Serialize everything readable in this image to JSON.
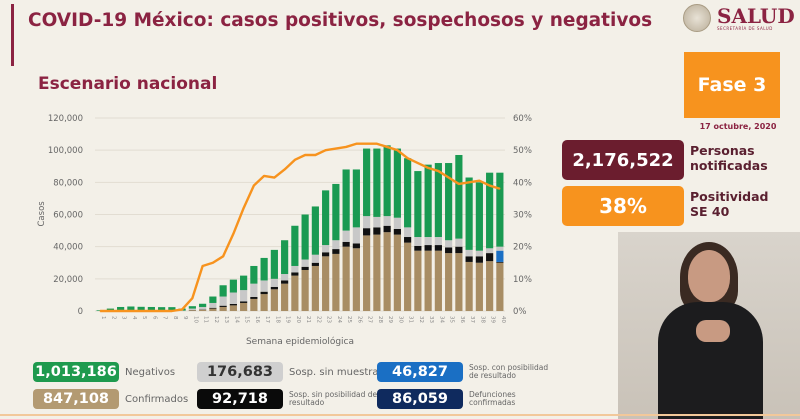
{
  "header": {
    "title": "COVID-19 México: casos positivos, sospechosos y negativos",
    "subtitle": "Escenario nacional",
    "logo_text": "SALUD",
    "logo_sub": "SECRETARÍA DE SALUD"
  },
  "panel": {
    "phase": "Fase 3",
    "date": "17 octubre, 2020",
    "notified_value": "2,176,522",
    "notified_label_1": "Personas",
    "notified_label_2": "notificadas",
    "positivity_value": "38%",
    "positivity_label_1": "Positividad",
    "positivity_label_2": "SE 40"
  },
  "legend": [
    {
      "value": "1,013,186",
      "label": "Negativos",
      "color": "#1e9a4e",
      "text_color": "#ffffff"
    },
    {
      "value": "176,683",
      "label": "Sosp. sin muestra",
      "color": "#cfcfcf",
      "text_color": "#333333"
    },
    {
      "value": "46,827",
      "label": "Sosp. con posibilidad de resultado",
      "color": "#1a6fc4",
      "text_color": "#ffffff"
    },
    {
      "value": "847,108",
      "label": "Confirmados",
      "color": "#b39a72",
      "text_color": "#ffffff"
    },
    {
      "value": "92,718",
      "label": "Sosp. sin posibilidad de resultado",
      "color": "#0a0a0a",
      "text_color": "#ffffff"
    },
    {
      "value": "86,059",
      "label": "Defunciones confirmadas",
      "color": "#0f2a5e",
      "text_color": "#ffffff"
    }
  ],
  "colors": {
    "confirmados": "#a88d64",
    "sin_posibilidad": "#111111",
    "con_posibilidad": "#1a6fc4",
    "sin_muestra": "#c8c8c8",
    "negativos": "#1a9a52",
    "positividad": "#f7931e"
  },
  "chart_data": {
    "type": "bar",
    "stacked": true,
    "xlabel": "Semana epidemiológica",
    "ylabel": "Casos",
    "ylim": [
      0,
      120000
    ],
    "y_ticks": [
      "0",
      "20,000",
      "40,000",
      "60,000",
      "80,000",
      "100,000",
      "120,000"
    ],
    "y2lim": [
      0,
      60
    ],
    "y2_ticks": [
      "0%",
      "10%",
      "20%",
      "30%",
      "40%",
      "50%",
      "60%"
    ],
    "categories": [
      "1",
      "2",
      "3",
      "4",
      "5",
      "6",
      "7",
      "8",
      "9",
      "10",
      "11",
      "12",
      "13",
      "14",
      "15",
      "16",
      "17",
      "18",
      "19",
      "20",
      "21",
      "22",
      "23",
      "24",
      "25",
      "26",
      "27",
      "28",
      "29",
      "30",
      "31",
      "32",
      "33",
      "34",
      "35",
      "36",
      "37",
      "38",
      "39",
      "40"
    ],
    "series": [
      {
        "name": "Confirmados",
        "key": "confirmados",
        "values": [
          0,
          0,
          0,
          0,
          0,
          0,
          0,
          0,
          50,
          500,
          800,
          1500,
          2500,
          3500,
          5000,
          7500,
          10500,
          13500,
          17000,
          22000,
          25500,
          28000,
          34000,
          35500,
          40000,
          39000,
          47000,
          47500,
          49000,
          47500,
          42500,
          37500,
          37500,
          37500,
          36000,
          36000,
          30500,
          30000,
          31000,
          30000
        ]
      },
      {
        "name": "Sosp. sin posibilidad de resultado",
        "key": "sin_posibilidad",
        "values": [
          0,
          0,
          0,
          0,
          0,
          0,
          0,
          0,
          0,
          100,
          200,
          500,
          800,
          900,
          1000,
          1200,
          1500,
          1500,
          2000,
          2000,
          2000,
          2000,
          2500,
          3000,
          3000,
          3000,
          4500,
          4500,
          4000,
          3500,
          3500,
          3000,
          3500,
          3500,
          3500,
          4000,
          3500,
          4000,
          5000,
          500
        ]
      },
      {
        "name": "Sosp. con posibilidad de resultado",
        "key": "con_posibilidad",
        "values": [
          0,
          0,
          0,
          0,
          0,
          0,
          0,
          0,
          0,
          0,
          0,
          0,
          0,
          0,
          0,
          0,
          0,
          0,
          0,
          0,
          0,
          0,
          0,
          0,
          0,
          0,
          0,
          0,
          0,
          0,
          0,
          0,
          0,
          0,
          0,
          0,
          0,
          0,
          0,
          7000
        ]
      },
      {
        "name": "Sosp. sin muestra",
        "key": "sin_muestra",
        "values": [
          100,
          200,
          300,
          300,
          300,
          300,
          300,
          300,
          200,
          900,
          1500,
          3000,
          5700,
          7100,
          7000,
          8300,
          7000,
          5000,
          4000,
          4000,
          4500,
          5000,
          4500,
          5500,
          7000,
          10000,
          7500,
          6500,
          6000,
          7000,
          6000,
          5500,
          5000,
          5000,
          4500,
          5000,
          4000,
          3500,
          3000,
          2500
        ]
      },
      {
        "name": "Negativos",
        "key": "negativos",
        "values": [
          400,
          1300,
          2200,
          2500,
          2300,
          2200,
          2100,
          2100,
          1250,
          1500,
          2000,
          4000,
          7000,
          8000,
          9000,
          11000,
          14000,
          18000,
          21000,
          25000,
          28000,
          30000,
          34000,
          35000,
          38000,
          36000,
          42000,
          42500,
          44000,
          43000,
          43000,
          41000,
          45000,
          46000,
          48000,
          52000,
          45000,
          42500,
          47000,
          46000
        ]
      }
    ],
    "line": {
      "name": "Positividad",
      "axis": "right",
      "values": [
        0,
        0,
        0,
        0,
        0,
        0,
        0,
        0,
        0.5,
        4,
        14,
        15,
        17,
        24,
        32,
        39,
        42,
        41.5,
        44,
        47,
        48.5,
        48.5,
        50,
        50.5,
        51,
        52,
        52,
        52,
        51,
        50,
        47.5,
        46,
        44.5,
        43.5,
        41.5,
        39.5,
        40,
        40.5,
        39,
        38
      ]
    },
    "grid": true
  }
}
